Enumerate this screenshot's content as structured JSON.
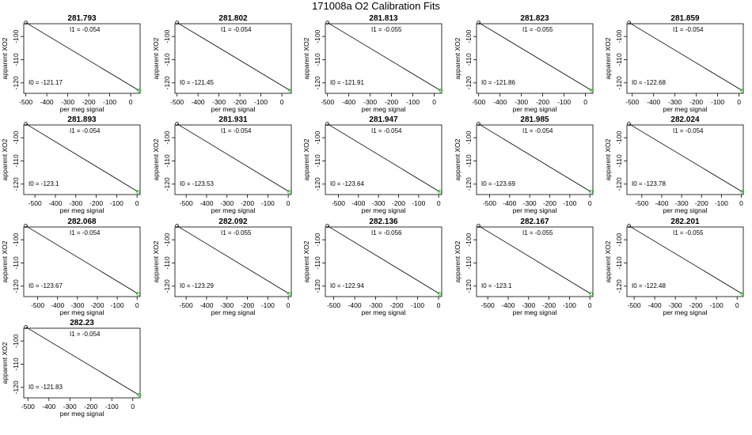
{
  "title": "171008a   O2 Calibration Fits",
  "chart_data": [
    {
      "type": "scatter",
      "title": "281.793",
      "xlabel": "per meg signal",
      "ylabel": "apparent XO2",
      "xlim": [
        -510,
        45
      ],
      "ylim": [
        -124.5,
        -94.5
      ],
      "xticks": [
        -500,
        -400,
        -300,
        -200,
        -100,
        0
      ],
      "yticks": [
        -100,
        -110,
        -120
      ],
      "annotations": [
        "I1 =  -0.054",
        "I0 =  -121.17"
      ],
      "fit_line": {
        "x": [
          -500,
          40
        ],
        "y": [
          -94.0,
          -123.3
        ]
      },
      "points_black": [
        {
          "x": -500,
          "y": -94.0
        }
      ],
      "points_green": [
        {
          "x": 40,
          "y": -123.3
        }
      ]
    },
    {
      "type": "scatter",
      "title": "281.802",
      "xlabel": "per meg signal",
      "ylabel": "apparent XO2",
      "xlim": [
        -510,
        45
      ],
      "ylim": [
        -124.5,
        -94.5
      ],
      "xticks": [
        -500,
        -400,
        -300,
        -200,
        -100,
        0
      ],
      "yticks": [
        -100,
        -110,
        -120
      ],
      "annotations": [
        "I1 =  -0.054",
        "I0 =  -121.45"
      ],
      "fit_line": {
        "x": [
          -500,
          40
        ],
        "y": [
          -94.0,
          -123.3
        ]
      },
      "points_black": [
        {
          "x": -500,
          "y": -94.0
        }
      ],
      "points_green": [
        {
          "x": 40,
          "y": -123.3
        }
      ]
    },
    {
      "type": "scatter",
      "title": "281.813",
      "xlabel": "per meg signal",
      "ylabel": "apparent XO2",
      "xlim": [
        -510,
        35
      ],
      "ylim": [
        -124.5,
        -94.5
      ],
      "xticks": [
        -500,
        -400,
        -300,
        -200,
        -100,
        0
      ],
      "yticks": [
        -100,
        -110,
        -120
      ],
      "annotations": [
        "I1 =  -0.055",
        "I0 =  -121.91"
      ],
      "fit_line": {
        "x": [
          -500,
          30
        ],
        "y": [
          -94.0,
          -123.3
        ]
      },
      "points_black": [
        {
          "x": -500,
          "y": -94.0
        }
      ],
      "points_green": [
        {
          "x": 30,
          "y": -123.3
        }
      ]
    },
    {
      "type": "scatter",
      "title": "281.823",
      "xlabel": "per meg signal",
      "ylabel": "apparent XO2",
      "xlim": [
        -510,
        35
      ],
      "ylim": [
        -124.5,
        -94.5
      ],
      "xticks": [
        -500,
        -400,
        -300,
        -200,
        -100,
        0
      ],
      "yticks": [
        -100,
        -110,
        -120
      ],
      "annotations": [
        "I1 =  -0.055",
        "I0 =  -121.86"
      ],
      "fit_line": {
        "x": [
          -500,
          30
        ],
        "y": [
          -94.0,
          -123.3
        ]
      },
      "points_black": [
        {
          "x": -500,
          "y": -94.0
        }
      ],
      "points_green": [
        {
          "x": 30,
          "y": -123.3
        }
      ]
    },
    {
      "type": "scatter",
      "title": "281.859",
      "xlabel": "per meg signal",
      "ylabel": "apparent XO2",
      "xlim": [
        -525,
        20
      ],
      "ylim": [
        -124.5,
        -94.5
      ],
      "xticks": [
        -500,
        -400,
        -300,
        -200,
        -100,
        0
      ],
      "yticks": [
        -100,
        -110,
        -120
      ],
      "annotations": [
        "I1 =  -0.054",
        "I0 =  -122.68"
      ],
      "fit_line": {
        "x": [
          -515,
          15
        ],
        "y": [
          -94.0,
          -123.3
        ]
      },
      "points_black": [
        {
          "x": -515,
          "y": -94.0
        }
      ],
      "points_green": [
        {
          "x": 15,
          "y": -123.3
        }
      ]
    },
    {
      "type": "scatter",
      "title": "281.893",
      "xlabel": "per meg signal",
      "ylabel": "apparent XO2",
      "xlim": [
        -555,
        15
      ],
      "ylim": [
        -124.5,
        -94.5
      ],
      "xticks": [
        -500,
        -400,
        -300,
        -200,
        -100,
        0
      ],
      "yticks": [
        -100,
        -110,
        -120
      ],
      "annotations": [
        "I1 =  -0.054",
        "I0 =  -123.1"
      ],
      "fit_line": {
        "x": [
          -545,
          5
        ],
        "y": [
          -94.0,
          -123.3
        ]
      },
      "points_black": [
        {
          "x": -545,
          "y": -94.0
        }
      ],
      "points_green": [
        {
          "x": 5,
          "y": -123.3
        }
      ]
    },
    {
      "type": "scatter",
      "title": "281.931",
      "xlabel": "per meg signal",
      "ylabel": "apparent XO2",
      "xlim": [
        -555,
        15
      ],
      "ylim": [
        -124.5,
        -94.5
      ],
      "xticks": [
        -500,
        -400,
        -300,
        -200,
        -100,
        0
      ],
      "yticks": [
        -100,
        -110,
        -120
      ],
      "annotations": [
        "I1 =  -0.054",
        "I0 =  -123.53"
      ],
      "fit_line": {
        "x": [
          -545,
          5
        ],
        "y": [
          -94.0,
          -123.3
        ]
      },
      "points_black": [
        {
          "x": -545,
          "y": -94.0
        }
      ],
      "points_green": [
        {
          "x": 5,
          "y": -123.3
        }
      ]
    },
    {
      "type": "scatter",
      "title": "281.947",
      "xlabel": "per meg signal",
      "ylabel": "apparent XO2",
      "xlim": [
        -565,
        15
      ],
      "ylim": [
        -124.5,
        -94.5
      ],
      "xticks": [
        -500,
        -400,
        -300,
        -200,
        -100,
        0
      ],
      "yticks": [
        -100,
        -110,
        -120
      ],
      "annotations": [
        "I1 =  -0.054",
        "I0 =  -123.64"
      ],
      "fit_line": {
        "x": [
          -555,
          5
        ],
        "y": [
          -94.0,
          -123.3
        ]
      },
      "points_black": [
        {
          "x": -555,
          "y": -94.0
        }
      ],
      "points_green": [
        {
          "x": 5,
          "y": -123.3
        }
      ]
    },
    {
      "type": "scatter",
      "title": "281.985",
      "xlabel": "per meg signal",
      "ylabel": "apparent XO2",
      "xlim": [
        -565,
        15
      ],
      "ylim": [
        -124.5,
        -94.5
      ],
      "xticks": [
        -500,
        -400,
        -300,
        -200,
        -100,
        0
      ],
      "yticks": [
        -100,
        -110,
        -120
      ],
      "annotations": [
        "I1 =  -0.054",
        "I0 =  -123.69"
      ],
      "fit_line": {
        "x": [
          -555,
          5
        ],
        "y": [
          -94.0,
          -123.3
        ]
      },
      "points_black": [
        {
          "x": -555,
          "y": -94.0
        }
      ],
      "points_green": [
        {
          "x": 5,
          "y": -123.3
        }
      ]
    },
    {
      "type": "scatter",
      "title": "282.024",
      "xlabel": "per meg signal",
      "ylabel": "apparent XO2",
      "xlim": [
        -575,
        10
      ],
      "ylim": [
        -124.5,
        -94.5
      ],
      "xticks": [
        -500,
        -400,
        -300,
        -200,
        -100,
        0
      ],
      "yticks": [
        -100,
        -110,
        -120
      ],
      "annotations": [
        "I1 =  -0.054",
        "I0 =  -123.78"
      ],
      "fit_line": {
        "x": [
          -565,
          5
        ],
        "y": [
          -94.0,
          -123.3
        ]
      },
      "points_black": [
        {
          "x": -565,
          "y": -94.0
        }
      ],
      "points_green": [
        {
          "x": 5,
          "y": -123.3
        }
      ]
    },
    {
      "type": "scatter",
      "title": "282.068",
      "xlabel": "per meg signal",
      "ylabel": "apparent XO2",
      "xlim": [
        -570,
        15
      ],
      "ylim": [
        -124.5,
        -94.5
      ],
      "xticks": [
        -500,
        -400,
        -300,
        -200,
        -100,
        0
      ],
      "yticks": [
        -100,
        -110,
        -120
      ],
      "annotations": [
        "I1 =  -0.054",
        "I0 =  -123.67"
      ],
      "fit_line": {
        "x": [
          -560,
          5
        ],
        "y": [
          -94.0,
          -123.3
        ]
      },
      "points_black": [
        {
          "x": -560,
          "y": -94.0
        }
      ],
      "points_green": [
        {
          "x": 5,
          "y": -123.3
        }
      ]
    },
    {
      "type": "scatter",
      "title": "282.092",
      "xlabel": "per meg signal",
      "ylabel": "apparent XO2",
      "xlim": [
        -555,
        15
      ],
      "ylim": [
        -124.5,
        -94.5
      ],
      "xticks": [
        -500,
        -400,
        -300,
        -200,
        -100,
        0
      ],
      "yticks": [
        -100,
        -110,
        -120
      ],
      "annotations": [
        "I1 =  -0.055",
        "I0 =  -123.29"
      ],
      "fit_line": {
        "x": [
          -545,
          5
        ],
        "y": [
          -94.0,
          -123.3
        ]
      },
      "points_black": [
        {
          "x": -545,
          "y": -94.0
        }
      ],
      "points_green": [
        {
          "x": 5,
          "y": -123.3
        }
      ]
    },
    {
      "type": "scatter",
      "title": "282.136",
      "xlabel": "per meg signal",
      "ylabel": "apparent XO2",
      "xlim": [
        -540,
        15
      ],
      "ylim": [
        -124.5,
        -94.5
      ],
      "xticks": [
        -500,
        -400,
        -300,
        -200,
        -100,
        0
      ],
      "yticks": [
        -100,
        -110,
        -120
      ],
      "annotations": [
        "I1 =  -0.056",
        "I0 =  -122.94"
      ],
      "fit_line": {
        "x": [
          -530,
          5
        ],
        "y": [
          -94.0,
          -123.3
        ]
      },
      "points_black": [
        {
          "x": -530,
          "y": -94.0
        }
      ],
      "points_green": [
        {
          "x": 5,
          "y": -123.3
        }
      ]
    },
    {
      "type": "scatter",
      "title": "282.167",
      "xlabel": "per meg signal",
      "ylabel": "apparent XO2",
      "xlim": [
        -555,
        15
      ],
      "ylim": [
        -124.5,
        -94.5
      ],
      "xticks": [
        -500,
        -400,
        -300,
        -200,
        -100,
        0
      ],
      "yticks": [
        -100,
        -110,
        -120
      ],
      "annotations": [
        "I1 =  -0.055",
        "I0 =  -123.1"
      ],
      "fit_line": {
        "x": [
          -545,
          5
        ],
        "y": [
          -94.0,
          -123.3
        ]
      },
      "points_black": [
        {
          "x": -545,
          "y": -94.0
        }
      ],
      "points_green": [
        {
          "x": 5,
          "y": -123.3
        }
      ]
    },
    {
      "type": "scatter",
      "title": "282.201",
      "xlabel": "per meg signal",
      "ylabel": "apparent XO2",
      "xlim": [
        -535,
        30
      ],
      "ylim": [
        -124.5,
        -94.5
      ],
      "xticks": [
        -500,
        -400,
        -300,
        -200,
        -100,
        0
      ],
      "yticks": [
        -100,
        -110,
        -120
      ],
      "annotations": [
        "I1 =  -0.055",
        "I0 =  -122.48"
      ],
      "fit_line": {
        "x": [
          -525,
          25
        ],
        "y": [
          -94.0,
          -123.3
        ]
      },
      "points_black": [
        {
          "x": -525,
          "y": -94.0
        }
      ],
      "points_green": [
        {
          "x": 25,
          "y": -123.3
        }
      ]
    },
    {
      "type": "scatter",
      "title": "282.23",
      "xlabel": "per meg signal",
      "ylabel": "apparent XO2",
      "xlim": [
        -520,
        35
      ],
      "ylim": [
        -124.5,
        -94.5
      ],
      "xticks": [
        -500,
        -400,
        -300,
        -200,
        -100,
        0
      ],
      "yticks": [
        -100,
        -110,
        -120
      ],
      "annotations": [
        "I1 =  -0.054",
        "I0 =  -121.83"
      ],
      "fit_line": {
        "x": [
          -510,
          30
        ],
        "y": [
          -94.0,
          -123.3
        ]
      },
      "points_black": [
        {
          "x": -510,
          "y": -94.0
        }
      ],
      "points_green": [
        {
          "x": 30,
          "y": -123.3
        }
      ]
    }
  ],
  "colors": {
    "axis": "#000000",
    "fit_line": "#000000",
    "point_first": "#000000",
    "point_last": "#00cc00"
  },
  "markers": {
    "point_shape": "open-circle"
  }
}
